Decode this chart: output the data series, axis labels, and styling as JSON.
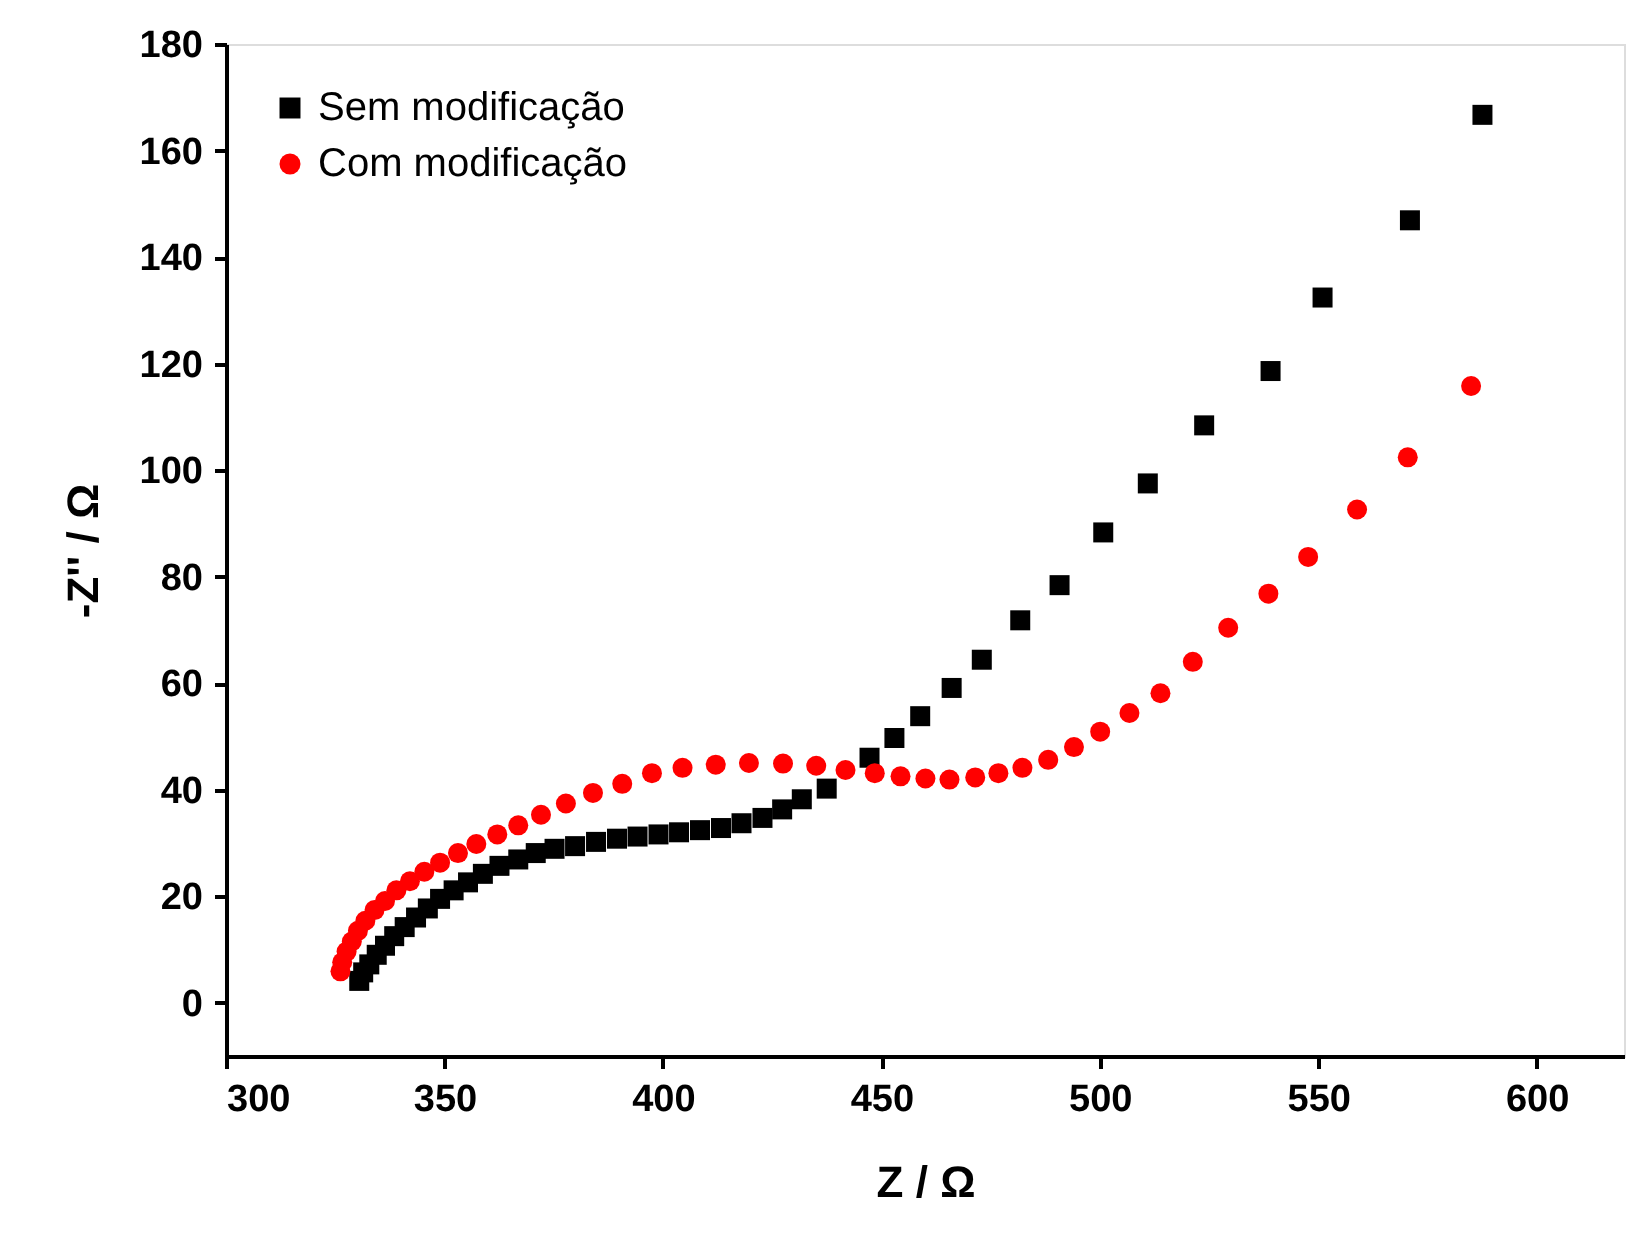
{
  "chart_data": {
    "type": "scatter",
    "xlabel": "Z / Ω",
    "ylabel": "-Z'' / Ω",
    "xlim": [
      300,
      620
    ],
    "ylim": [
      -10,
      180
    ],
    "xticks": [
      300,
      350,
      400,
      450,
      500,
      550,
      600
    ],
    "yticks": [
      0,
      20,
      40,
      60,
      80,
      100,
      120,
      140,
      160,
      180
    ],
    "grid": false,
    "legend": "top left",
    "series": [
      {
        "name": "Sem modificação",
        "color": "#000000",
        "marker": "square",
        "x": [
          330.5,
          331.4,
          332.8,
          334.5,
          336.4,
          338.5,
          340.9,
          343.5,
          346.2,
          349.0,
          352.1,
          355.4,
          358.8,
          362.6,
          366.9,
          370.9,
          375.2,
          379.9,
          384.7,
          389.5,
          394.2,
          399.0,
          403.7,
          408.5,
          413.3,
          418.0,
          422.8,
          427.3,
          431.8,
          437.5,
          441.8,
          447.3,
          453.0,
          458.9,
          466.1,
          473.0,
          481.8,
          490.8,
          500.8,
          511.0,
          523.9,
          539.1,
          551.0,
          571.0,
          587.6
        ],
        "values": [
          4.1,
          5.7,
          7.2,
          9.0,
          10.7,
          12.5,
          14.2,
          16.0,
          17.7,
          19.5,
          21.1,
          22.6,
          24.2,
          25.7,
          26.9,
          28.1,
          28.9,
          29.4,
          30.2,
          30.8,
          31.2,
          31.6,
          32.0,
          32.4,
          32.8,
          33.7,
          34.7,
          36.3,
          38.2,
          40.2,
          null,
          46.0,
          49.7,
          53.8,
          59.1,
          64.4,
          71.8,
          78.4,
          88.3,
          97.5,
          108.4,
          118.6,
          132.4,
          146.9,
          166.7
        ]
      },
      {
        "name": "Com modificação",
        "color": "#ff0000",
        "marker": "circle",
        "x": [
          326.2,
          326.6,
          327.6,
          328.8,
          330.2,
          331.9,
          334.0,
          336.4,
          339.0,
          342.1,
          345.4,
          349.0,
          353.1,
          357.3,
          362.1,
          366.9,
          372.1,
          377.8,
          384.0,
          390.7,
          397.5,
          404.5,
          412.1,
          419.7,
          427.5,
          435.1,
          441.8,
          448.5,
          454.4,
          460.1,
          465.6,
          471.5,
          476.8,
          482.3,
          488.2,
          494.1,
          500.1,
          506.8,
          513.9,
          521.3,
          529.4,
          538.6,
          547.7,
          558.9,
          570.5,
          585.0
        ],
        "values": [
          5.9,
          7.6,
          9.6,
          11.5,
          13.5,
          15.4,
          17.4,
          19.1,
          21.1,
          22.8,
          24.6,
          26.3,
          28.1,
          29.8,
          31.6,
          33.3,
          35.3,
          37.4,
          39.4,
          41.1,
          43.1,
          44.1,
          44.7,
          45.0,
          44.9,
          44.5,
          43.7,
          43.1,
          42.5,
          42.1,
          41.9,
          42.3,
          43.1,
          44.1,
          45.6,
          48.0,
          50.9,
          54.4,
          58.1,
          64.0,
          70.4,
          76.8,
          83.7,
          92.6,
          102.4,
          115.8
        ]
      }
    ]
  }
}
